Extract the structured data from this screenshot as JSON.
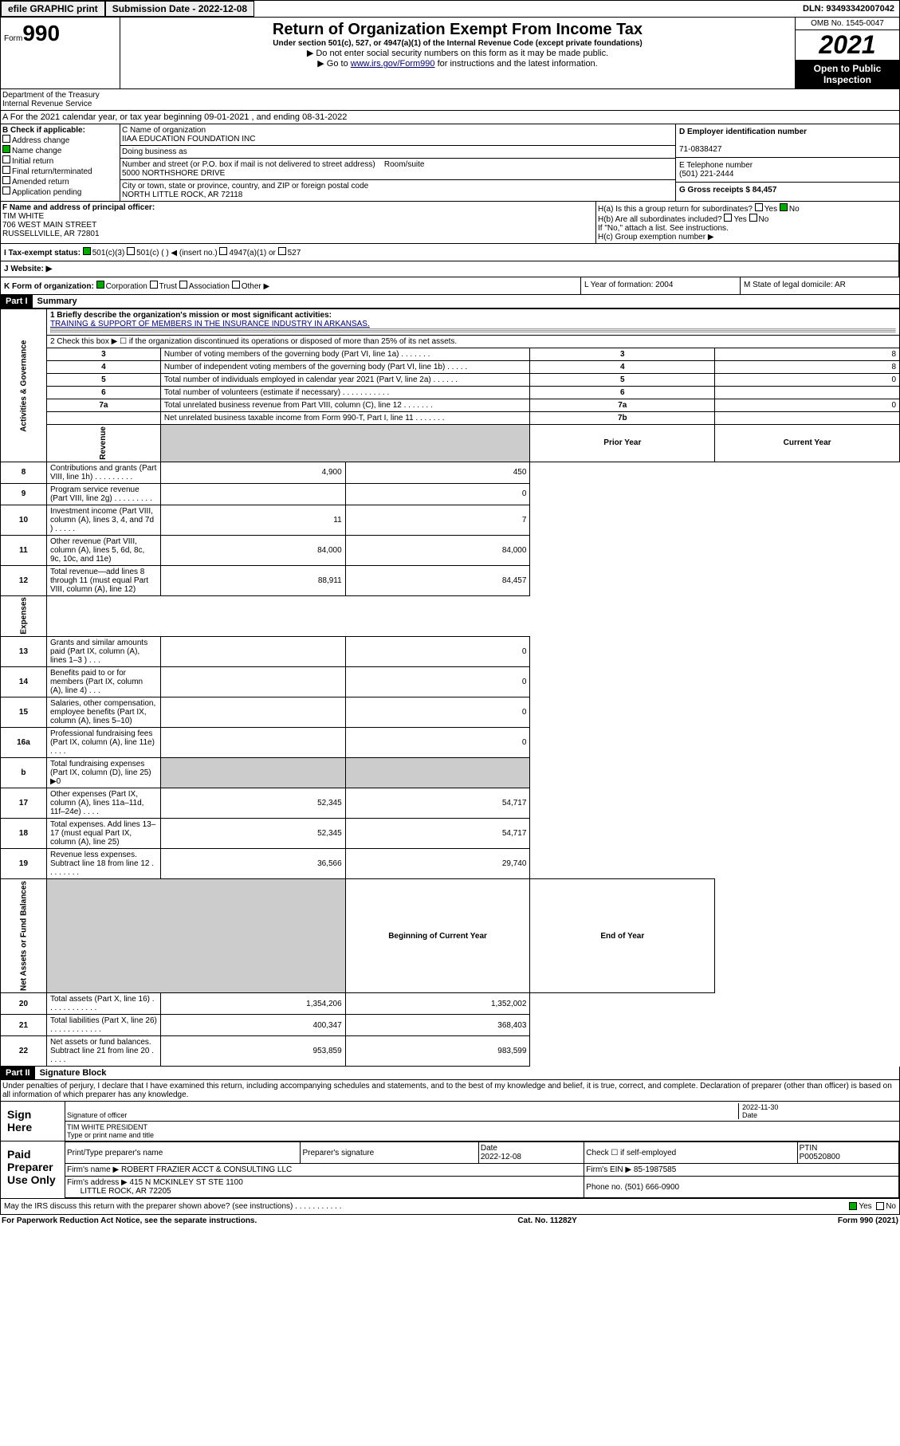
{
  "topbar": {
    "efile": "efile GRAPHIC print",
    "submission_label": "Submission Date - 2022-12-08",
    "dln": "DLN: 93493342007042"
  },
  "header": {
    "form_prefix": "Form",
    "form_number": "990",
    "title": "Return of Organization Exempt From Income Tax",
    "subtitle": "Under section 501(c), 527, or 4947(a)(1) of the Internal Revenue Code (except private foundations)",
    "note1": "▶ Do not enter social security numbers on this form as it may be made public.",
    "note2_pre": "▶ Go to ",
    "note2_link": "www.irs.gov/Form990",
    "note2_post": " for instructions and the latest information.",
    "omb": "OMB No. 1545-0047",
    "year": "2021",
    "inspection": "Open to Public Inspection",
    "dept": "Department of the Treasury",
    "irs": "Internal Revenue Service"
  },
  "fiscal": "A For the 2021 calendar year, or tax year beginning 09-01-2021  , and ending 08-31-2022",
  "section_b": {
    "label": "B Check if applicable:",
    "items": [
      "Address change",
      "Name change",
      "Initial return",
      "Final return/terminated",
      "Amended return",
      "Application pending"
    ]
  },
  "section_c": {
    "name_label": "C Name of organization",
    "name": "IIAA EDUCATION FOUNDATION INC",
    "dba_label": "Doing business as",
    "addr_label": "Number and street (or P.O. box if mail is not delivered to street address)",
    "room_label": "Room/suite",
    "addr": "5000 NORTHSHORE DRIVE",
    "city_label": "City or town, state or province, country, and ZIP or foreign postal code",
    "city": "NORTH LITTLE ROCK, AR  72118"
  },
  "section_d": {
    "label": "D Employer identification number",
    "ein": "71-0838427"
  },
  "section_e": {
    "label": "E Telephone number",
    "phone": "(501) 221-2444"
  },
  "section_g": {
    "label": "G Gross receipts $ 84,457"
  },
  "section_f": {
    "label": "F  Name and address of principal officer:",
    "name": "TIM WHITE",
    "addr1": "706 WEST MAIN STREET",
    "addr2": "RUSSELLVILLE, AR  72801"
  },
  "section_h": {
    "ha": "H(a)  Is this a group return for subordinates?",
    "hb": "H(b)  Are all subordinates included?",
    "hb_note": "If \"No,\" attach a list. See instructions.",
    "hc": "H(c)  Group exemption number ▶",
    "yes": "Yes",
    "no": "No"
  },
  "section_i": {
    "label": "I  Tax-exempt status:",
    "opts": [
      "501(c)(3)",
      "501(c) (  ) ◀ (insert no.)",
      "4947(a)(1) or",
      "527"
    ]
  },
  "section_j": {
    "label": "J  Website: ▶"
  },
  "section_k": {
    "label": "K Form of organization:",
    "opts": [
      "Corporation",
      "Trust",
      "Association",
      "Other ▶"
    ]
  },
  "section_l": "L Year of formation: 2004",
  "section_m": "M State of legal domicile: AR",
  "part1": {
    "hdr": "Part I",
    "title": "Summary",
    "line1_label": "1  Briefly describe the organization's mission or most significant activities:",
    "line1_text": "TRAINING & SUPPORT OF MEMBERS IN THE INSURANCE INDUSTRY IN ARKANSAS.",
    "line2": "2   Check this box ▶ ☐  if the organization discontinued its operations or disposed of more than 25% of its net assets.",
    "sections": {
      "activities": "Activities & Governance",
      "revenue": "Revenue",
      "expenses": "Expenses",
      "net": "Net Assets or Fund Balances"
    },
    "cols": {
      "prior": "Prior Year",
      "current": "Current Year",
      "beg": "Beginning of Current Year",
      "end": "End of Year"
    },
    "rows": [
      {
        "n": "3",
        "t": "Number of voting members of the governing body (Part VI, line 1a)  .   .   .   .   .   .   .",
        "rn": "3",
        "v": "8"
      },
      {
        "n": "4",
        "t": "Number of independent voting members of the governing body (Part VI, line 1b)  .   .   .   .   .",
        "rn": "4",
        "v": "8"
      },
      {
        "n": "5",
        "t": "Total number of individuals employed in calendar year 2021 (Part V, line 2a)  .   .   .   .   .   .",
        "rn": "5",
        "v": "0"
      },
      {
        "n": "6",
        "t": "Total number of volunteers (estimate if necessary)  .   .   .   .   .   .   .   .   .   .   .",
        "rn": "6",
        "v": ""
      },
      {
        "n": "7a",
        "t": "Total unrelated business revenue from Part VIII, column (C), line 12  .   .   .   .   .   .   .",
        "rn": "7a",
        "v": "0"
      },
      {
        "n": "",
        "t": "Net unrelated business taxable income from Form 990-T, Part I, line 11  .   .   .   .   .   .   .",
        "rn": "7b",
        "v": ""
      }
    ],
    "rev_rows": [
      {
        "n": "8",
        "t": "Contributions and grants (Part VIII, line 1h)   .    .    .    .    .    .    .    .    .",
        "p": "4,900",
        "c": "450"
      },
      {
        "n": "9",
        "t": "Program service revenue (Part VIII, line 2g)   .    .    .    .    .    .    .    .    .",
        "p": "",
        "c": "0"
      },
      {
        "n": "10",
        "t": "Investment income (Part VIII, column (A), lines 3, 4, and 7d )  .    .    .    .    .",
        "p": "11",
        "c": "7"
      },
      {
        "n": "11",
        "t": "Other revenue (Part VIII, column (A), lines 5, 6d, 8c, 9c, 10c, and 11e)",
        "p": "84,000",
        "c": "84,000"
      },
      {
        "n": "12",
        "t": "Total revenue—add lines 8 through 11 (must equal Part VIII, column (A), line 12)",
        "p": "88,911",
        "c": "84,457"
      }
    ],
    "exp_rows": [
      {
        "n": "13",
        "t": "Grants and similar amounts paid (Part IX, column (A), lines 1–3 )  .   .   .",
        "p": "",
        "c": "0"
      },
      {
        "n": "14",
        "t": "Benefits paid to or for members (Part IX, column (A), line 4)  .   .   .",
        "p": "",
        "c": "0"
      },
      {
        "n": "15",
        "t": "Salaries, other compensation, employee benefits (Part IX, column (A), lines 5–10)",
        "p": "",
        "c": "0"
      },
      {
        "n": "16a",
        "t": "Professional fundraising fees (Part IX, column (A), line 11e)  .   .   .   .",
        "p": "",
        "c": "0"
      },
      {
        "n": "b",
        "t": "Total fundraising expenses (Part IX, column (D), line 25) ▶0",
        "p": "gray",
        "c": "gray"
      },
      {
        "n": "17",
        "t": "Other expenses (Part IX, column (A), lines 11a–11d, 11f–24e)  .   .   .   .",
        "p": "52,345",
        "c": "54,717"
      },
      {
        "n": "18",
        "t": "Total expenses. Add lines 13–17 (must equal Part IX, column (A), line 25)",
        "p": "52,345",
        "c": "54,717"
      },
      {
        "n": "19",
        "t": "Revenue less expenses. Subtract line 18 from line 12  .   .   .   .   .   .   .   .",
        "p": "36,566",
        "c": "29,740"
      }
    ],
    "net_rows": [
      {
        "n": "20",
        "t": "Total assets (Part X, line 16)  .    .    .    .    .    .    .    .    .    .    .    .",
        "p": "1,354,206",
        "c": "1,352,002"
      },
      {
        "n": "21",
        "t": "Total liabilities (Part X, line 26)  .    .    .    .    .    .    .    .    .    .    .    .",
        "p": "400,347",
        "c": "368,403"
      },
      {
        "n": "22",
        "t": "Net assets or fund balances. Subtract line 21 from line 20  .    .    .    .    .",
        "p": "953,859",
        "c": "983,599"
      }
    ]
  },
  "part2": {
    "hdr": "Part II",
    "title": "Signature Block",
    "penalty": "Under penalties of perjury, I declare that I have examined this return, including accompanying schedules and statements, and to the best of my knowledge and belief, it is true, correct, and complete. Declaration of preparer (other than officer) is based on all information of which preparer has any knowledge.",
    "sign_here": "Sign Here",
    "sig_officer": "Signature of officer",
    "date": "2022-11-30",
    "date_label": "Date",
    "officer_name": "TIM WHITE PRESIDENT",
    "officer_label": "Type or print name and title",
    "paid": "Paid Preparer Use Only",
    "prep_name_label": "Print/Type preparer's name",
    "prep_sig_label": "Preparer's signature",
    "prep_date_label": "Date",
    "prep_date": "2022-12-08",
    "check_label": "Check ☐ if self-employed",
    "ptin_label": "PTIN",
    "ptin": "P00520800",
    "firm_name_label": "Firm's name    ▶",
    "firm_name": "ROBERT FRAZIER ACCT & CONSULTING LLC",
    "firm_ein_label": "Firm's EIN ▶",
    "firm_ein": "85-1987585",
    "firm_addr_label": "Firm's address ▶",
    "firm_addr": "415 N MCKINLEY ST STE 1100",
    "firm_city": "LITTLE ROCK, AR  72205",
    "phone_label": "Phone no.",
    "phone": "(501) 666-0900",
    "discuss": "May the IRS discuss this return with the preparer shown above? (see instructions)   .    .    .    .    .    .    .    .    .    .    .",
    "yes": "Yes",
    "no": "No"
  },
  "footer": {
    "left": "For Paperwork Reduction Act Notice, see the separate instructions.",
    "mid": "Cat. No. 11282Y",
    "right": "Form 990 (2021)"
  }
}
